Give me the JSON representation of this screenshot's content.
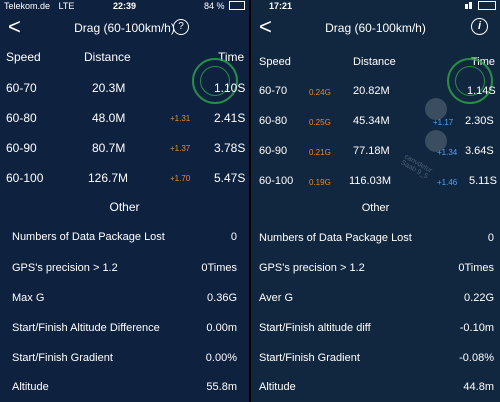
{
  "left": {
    "statusbar": {
      "carrier": "Telekom.de",
      "network": "LTE",
      "time": "22:39",
      "battery": "84 %"
    },
    "nav": {
      "back": "<",
      "title": "Drag (60-100km/h)",
      "help": "?"
    },
    "headers": {
      "speed": "Speed",
      "distance": "Distance",
      "time": "Time"
    },
    "rows": [
      {
        "speed": "60-70",
        "distance": "20.3M",
        "delta": "",
        "time": "1.10S"
      },
      {
        "speed": "60-80",
        "distance": "48.0M",
        "delta": "+1.31",
        "time": "2.41S"
      },
      {
        "speed": "60-90",
        "distance": "80.7M",
        "delta": "+1.37",
        "time": "3.78S"
      },
      {
        "speed": "60-100",
        "distance": "126.7M",
        "delta": "+1.70",
        "time": "5.47S"
      }
    ],
    "other_label": "Other",
    "stats": [
      {
        "label": "Numbers of Data Package Lost",
        "value": "0"
      },
      {
        "label": "GPS's precision > 1.2",
        "value": "0Times"
      },
      {
        "label": "Max G",
        "value": "0.36G"
      },
      {
        "label": "Start/Finish Altitude Difference",
        "value": "0.00m"
      },
      {
        "label": "Start/Finish Gradient",
        "value": "0.00%"
      },
      {
        "label": "Altitude",
        "value": "55.8m"
      }
    ]
  },
  "right": {
    "statusbar": {
      "time": "17:21"
    },
    "nav": {
      "back": "<",
      "title": "Drag (60-100km/h)",
      "info": "i"
    },
    "headers": {
      "speed": "Speed",
      "distance": "Distance",
      "time": "Time"
    },
    "rows": [
      {
        "speed": "60-70",
        "g": "0.24G",
        "distance": "20.82M",
        "delta": "",
        "time": "1.14S"
      },
      {
        "speed": "60-80",
        "g": "0.25G",
        "distance": "45.34M",
        "delta": "+1.17",
        "time": "2.30S"
      },
      {
        "speed": "60-90",
        "g": "0.21G",
        "distance": "77.18M",
        "delta": "+1.34",
        "time": "3.64S"
      },
      {
        "speed": "60-100",
        "g": "0.19G",
        "distance": "116.03M",
        "delta": "+1.46",
        "time": "5.11S"
      }
    ],
    "other_label": "Other",
    "stats": [
      {
        "label": "Numbers of Data Package Lost",
        "value": "0"
      },
      {
        "label": "GPS's precision > 1.2",
        "value": "0Times"
      },
      {
        "label": "Aver G",
        "value": "0.22G"
      },
      {
        "label": "Start/Finish altitude diff",
        "value": "-0.10m"
      },
      {
        "label": "Start/Finish Gradient",
        "value": "-0.08%"
      },
      {
        "label": "Altitude",
        "value": "44.8m"
      }
    ],
    "watermark": {
      "line1": "canvdetor",
      "line2": "Saab 9_5"
    }
  },
  "colors": {
    "left_bg": "#0e2240",
    "right_bg": "#11263f",
    "delta_left": "#e58a2d",
    "g_right": "#e58a2d",
    "delta_right": "#4aa3ff",
    "stamp": "#2ea84a"
  }
}
